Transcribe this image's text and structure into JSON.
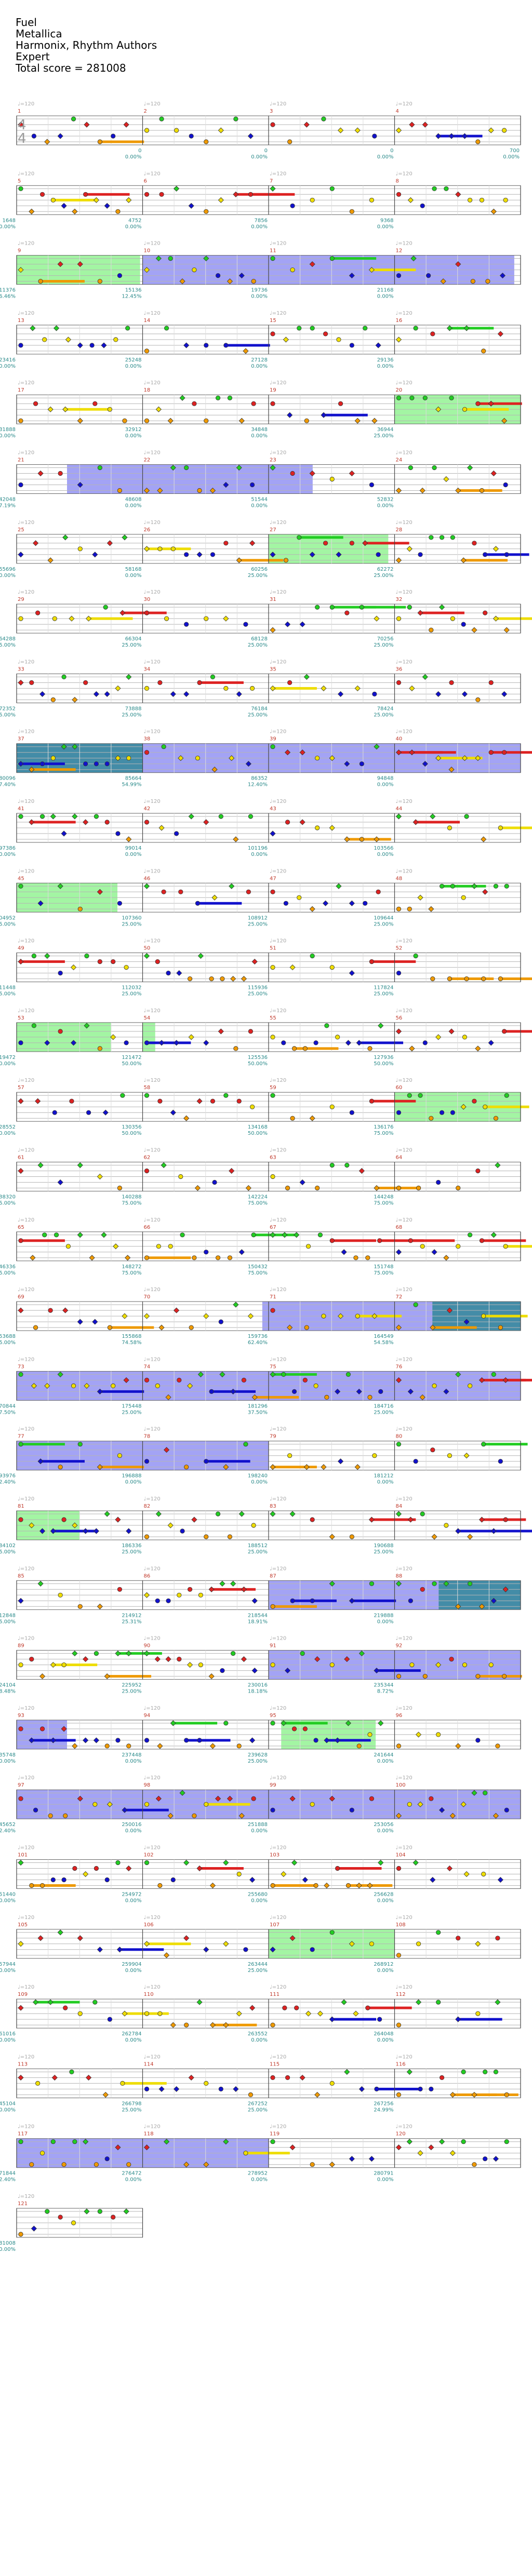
{
  "song": {
    "title": "Fuel",
    "artist": "Metallica",
    "charter": "Harmonix, Rhythm Authors",
    "difficulty": "Expert",
    "total_score": "Total score = 281008"
  },
  "time_signature": [
    "4",
    "4"
  ],
  "colors": {
    "green": "#22cc22",
    "red": "#dd2222",
    "yellow": "#eedd00",
    "blue": "#1111cc",
    "orange": "#ee9900",
    "star_power": "#66ee66",
    "solo": "#6666ee",
    "overlap": "#338899",
    "measure_num": "#c0392b",
    "score_text": "#2a8a8a"
  },
  "rows": [
    {
      "measures": [
        {
          "num": "1",
          "bpm": "♩=120",
          "score": "",
          "pct": ""
        },
        {
          "num": "2",
          "bpm": "♩=120",
          "score": "0",
          "pct": "0.00%"
        },
        {
          "num": "3",
          "bpm": "♩=120",
          "score": "0",
          "pct": "0.00%"
        },
        {
          "num": "4",
          "bpm": "♩=120",
          "score": "0",
          "pct": "0.00%"
        }
      ],
      "end_score": "700",
      "end_pct": "0.00%"
    },
    {
      "measures": [
        {
          "num": "5",
          "bpm": "♩=120",
          "score": "1648",
          "pct": "0.00%"
        },
        {
          "num": "6",
          "bpm": "♩=120",
          "score": "4752",
          "pct": "0.00%"
        },
        {
          "num": "7",
          "bpm": "♩=120",
          "score": "7856",
          "pct": "0.00%"
        },
        {
          "num": "8",
          "bpm": "♩=120",
          "score": "9368",
          "pct": "0.00%"
        }
      ]
    },
    {
      "measures": [
        {
          "num": "9",
          "bpm": "♩=120",
          "score": "11376",
          "pct": "16.46%"
        },
        {
          "num": "10",
          "bpm": "♩=120",
          "score": "15136",
          "pct": "12.45%"
        },
        {
          "num": "11",
          "bpm": "♩=120",
          "score": "19736",
          "pct": "0.00%"
        },
        {
          "num": "12",
          "bpm": "♩=120",
          "score": "21168",
          "pct": "0.00%"
        }
      ]
    },
    {
      "measures": [
        {
          "num": "13",
          "bpm": "♩=120",
          "score": "23416",
          "pct": "0.00%"
        },
        {
          "num": "14",
          "bpm": "♩=120",
          "score": "25248",
          "pct": "0.00%"
        },
        {
          "num": "15",
          "bpm": "♩=120",
          "score": "27128",
          "pct": "0.00%"
        },
        {
          "num": "16",
          "bpm": "♩=120",
          "score": "29136",
          "pct": "0.00%"
        }
      ]
    },
    {
      "measures": [
        {
          "num": "17",
          "bpm": "♩=120",
          "score": "31888",
          "pct": "0.00%"
        },
        {
          "num": "18",
          "bpm": "♩=120",
          "score": "32912",
          "pct": "0.00%"
        },
        {
          "num": "19",
          "bpm": "♩=120",
          "score": "34848",
          "pct": "0.00%"
        },
        {
          "num": "20",
          "bpm": "♩=120",
          "score": "36944",
          "pct": "25.00%"
        }
      ]
    },
    {
      "measures": [
        {
          "num": "21",
          "bpm": "♩=120",
          "score": "42048",
          "pct": "17.19%"
        },
        {
          "num": "22",
          "bpm": "♩=120",
          "score": "48608",
          "pct": "0.00%"
        },
        {
          "num": "23",
          "bpm": "♩=120",
          "score": "51544",
          "pct": "0.00%"
        },
        {
          "num": "24",
          "bpm": "♩=120",
          "score": "52832",
          "pct": "0.00%"
        }
      ]
    },
    {
      "measures": [
        {
          "num": "25",
          "bpm": "♩=120",
          "score": "55696",
          "pct": "0.00%"
        },
        {
          "num": "26",
          "bpm": "♩=120",
          "score": "58168",
          "pct": "0.00%"
        },
        {
          "num": "27",
          "bpm": "♩=120",
          "score": "60256",
          "pct": "25.00%"
        },
        {
          "num": "28",
          "bpm": "♩=120",
          "score": "62272",
          "pct": "25.00%"
        }
      ]
    },
    {
      "measures": [
        {
          "num": "29",
          "bpm": "♩=120",
          "score": "64288",
          "pct": "25.00%"
        },
        {
          "num": "30",
          "bpm": "♩=120",
          "score": "66304",
          "pct": "25.00%"
        },
        {
          "num": "31",
          "bpm": "♩=120",
          "score": "68128",
          "pct": "25.00%"
        },
        {
          "num": "32",
          "bpm": "♩=120",
          "score": "70256",
          "pct": "25.00%"
        }
      ]
    },
    {
      "measures": [
        {
          "num": "33",
          "bpm": "♩=120",
          "score": "72352",
          "pct": "25.00%"
        },
        {
          "num": "34",
          "bpm": "♩=120",
          "score": "73888",
          "pct": "25.00%"
        },
        {
          "num": "35",
          "bpm": "♩=120",
          "score": "76184",
          "pct": "25.00%"
        },
        {
          "num": "36",
          "bpm": "♩=120",
          "score": "78424",
          "pct": "25.00%"
        }
      ]
    },
    {
      "measures": [
        {
          "num": "37",
          "bpm": "♩=120",
          "score": "80096",
          "pct": "37.40%"
        },
        {
          "num": "38",
          "bpm": "♩=120",
          "score": "85664",
          "pct": "54.99%"
        },
        {
          "num": "39",
          "bpm": "♩=120",
          "score": "86352",
          "pct": "12.40%"
        },
        {
          "num": "40",
          "bpm": "♩=120",
          "score": "94848",
          "pct": "0.00%"
        }
      ]
    },
    {
      "measures": [
        {
          "num": "41",
          "bpm": "♩=120",
          "score": "97386",
          "pct": "0.00%"
        },
        {
          "num": "42",
          "bpm": "♩=120",
          "score": "99014",
          "pct": "0.00%"
        },
        {
          "num": "43",
          "bpm": "♩=120",
          "score": "101196",
          "pct": "0.00%"
        },
        {
          "num": "44",
          "bpm": "♩=120",
          "score": "103566",
          "pct": "0.00%"
        }
      ]
    },
    {
      "measures": [
        {
          "num": "45",
          "bpm": "♩=120",
          "score": "104952",
          "pct": "25.00%"
        },
        {
          "num": "46",
          "bpm": "♩=120",
          "score": "107360",
          "pct": "25.00%"
        },
        {
          "num": "47",
          "bpm": "♩=120",
          "score": "108912",
          "pct": "25.00%"
        },
        {
          "num": "48",
          "bpm": "♩=120",
          "score": "109644",
          "pct": "25.00%"
        }
      ]
    },
    {
      "measures": [
        {
          "num": "49",
          "bpm": "♩=120",
          "score": "111448",
          "pct": "25.00%"
        },
        {
          "num": "50",
          "bpm": "♩=120",
          "score": "112032",
          "pct": "25.00%"
        },
        {
          "num": "51",
          "bpm": "♩=120",
          "score": "115936",
          "pct": "25.00%"
        },
        {
          "num": "52",
          "bpm": "♩=120",
          "score": "117824",
          "pct": "25.00%"
        }
      ]
    },
    {
      "measures": [
        {
          "num": "53",
          "bpm": "♩=120",
          "score": "119472",
          "pct": "50.00%"
        },
        {
          "num": "54",
          "bpm": "♩=120",
          "score": "121472",
          "pct": "50.00%"
        },
        {
          "num": "55",
          "bpm": "♩=120",
          "score": "125536",
          "pct": "50.00%"
        },
        {
          "num": "56",
          "bpm": "♩=120",
          "score": "127936",
          "pct": "50.00%"
        }
      ]
    },
    {
      "measures": [
        {
          "num": "57",
          "bpm": "♩=120",
          "score": "128552",
          "pct": "50.00%"
        },
        {
          "num": "58",
          "bpm": "♩=120",
          "score": "130356",
          "pct": "50.00%"
        },
        {
          "num": "59",
          "bpm": "♩=120",
          "score": "134168",
          "pct": "50.00%"
        },
        {
          "num": "60",
          "bpm": "♩=120",
          "score": "136176",
          "pct": "75.00%"
        }
      ]
    },
    {
      "measures": [
        {
          "num": "61",
          "bpm": "♩=120",
          "score": "138320",
          "pct": "75.00%"
        },
        {
          "num": "62",
          "bpm": "♩=120",
          "score": "140288",
          "pct": "75.00%"
        },
        {
          "num": "63",
          "bpm": "♩=120",
          "score": "142224",
          "pct": "75.00%"
        },
        {
          "num": "64",
          "bpm": "♩=120",
          "score": "144248",
          "pct": "75.00%"
        }
      ]
    },
    {
      "measures": [
        {
          "num": "65",
          "bpm": "♩=120",
          "score": "146336",
          "pct": "75.00%"
        },
        {
          "num": "66",
          "bpm": "♩=120",
          "score": "148272",
          "pct": "75.00%"
        },
        {
          "num": "67",
          "bpm": "♩=120",
          "score": "150432",
          "pct": "75.00%"
        },
        {
          "num": "68",
          "bpm": "♩=120",
          "score": "151748",
          "pct": "75.00%"
        }
      ]
    },
    {
      "measures": [
        {
          "num": "69",
          "bpm": "♩=120",
          "score": "153688",
          "pct": "75.00%"
        },
        {
          "num": "70",
          "bpm": "♩=120",
          "score": "155868",
          "pct": "74.58%"
        },
        {
          "num": "71",
          "bpm": "♩=120",
          "score": "159736",
          "pct": "62.40%"
        },
        {
          "num": "72",
          "bpm": "♩=120",
          "score": "164549",
          "pct": "54.58%"
        }
      ]
    },
    {
      "measures": [
        {
          "num": "73",
          "bpm": "♩=120",
          "score": "170844",
          "pct": "37.50%"
        },
        {
          "num": "74",
          "bpm": "♩=120",
          "score": "175448",
          "pct": "25.00%"
        },
        {
          "num": "75",
          "bpm": "♩=120",
          "score": "181296",
          "pct": "37.50%"
        },
        {
          "num": "76",
          "bpm": "♩=120",
          "score": "184716",
          "pct": "25.00%"
        }
      ]
    },
    {
      "measures": [
        {
          "num": "77",
          "bpm": "♩=120",
          "score": "193976",
          "pct": "12.40%"
        },
        {
          "num": "78",
          "bpm": "♩=120",
          "score": "196888",
          "pct": "0.00%"
        },
        {
          "num": "79",
          "bpm": "♩=120",
          "score": "198240",
          "pct": "0.00%"
        },
        {
          "num": "80",
          "bpm": "♩=120",
          "score": "181212",
          "pct": "0.00%"
        }
      ]
    },
    {
      "measures": [
        {
          "num": "81",
          "bpm": "♩=120",
          "score": "184102",
          "pct": "25.00%"
        },
        {
          "num": "82",
          "bpm": "♩=120",
          "score": "186336",
          "pct": "25.00%"
        },
        {
          "num": "83",
          "bpm": "♩=120",
          "score": "188512",
          "pct": "25.00%"
        },
        {
          "num": "84",
          "bpm": "♩=120",
          "score": "190688",
          "pct": "25.00%"
        }
      ]
    },
    {
      "measures": [
        {
          "num": "85",
          "bpm": "♩=120",
          "score": "212848",
          "pct": "25.00%"
        },
        {
          "num": "86",
          "bpm": "♩=120",
          "score": "214912",
          "pct": "25.31%"
        },
        {
          "num": "87",
          "bpm": "♩=120",
          "score": "218544",
          "pct": "18.91%"
        },
        {
          "num": "88",
          "bpm": "♩=120",
          "score": "219888",
          "pct": "0.00%"
        }
      ]
    },
    {
      "measures": [
        {
          "num": "89",
          "bpm": "♩=120",
          "score": "224104",
          "pct": "18.48%"
        },
        {
          "num": "90",
          "bpm": "♩=120",
          "score": "225952",
          "pct": "25.00%"
        },
        {
          "num": "91",
          "bpm": "♩=120",
          "score": "230016",
          "pct": "18.18%"
        },
        {
          "num": "92",
          "bpm": "♩=120",
          "score": "235344",
          "pct": "8.72%"
        }
      ]
    },
    {
      "measures": [
        {
          "num": "93",
          "bpm": "♩=120",
          "score": "235748",
          "pct": "0.00%"
        },
        {
          "num": "94",
          "bpm": "♩=120",
          "score": "237448",
          "pct": "0.00%"
        },
        {
          "num": "95",
          "bpm": "♩=120",
          "score": "239628",
          "pct": "25.00%"
        },
        {
          "num": "96",
          "bpm": "♩=120",
          "score": "241644",
          "pct": "0.00%"
        }
      ]
    },
    {
      "measures": [
        {
          "num": "97",
          "bpm": "♩=120",
          "score": "245652",
          "pct": "12.40%"
        },
        {
          "num": "98",
          "bpm": "♩=120",
          "score": "250016",
          "pct": "0.00%"
        },
        {
          "num": "99",
          "bpm": "♩=120",
          "score": "251888",
          "pct": "0.00%"
        },
        {
          "num": "100",
          "bpm": "♩=120",
          "score": "253056",
          "pct": "0.00%"
        }
      ]
    },
    {
      "measures": [
        {
          "num": "101",
          "bpm": "♩=120",
          "score": "251440",
          "pct": "0.00%"
        },
        {
          "num": "102",
          "bpm": "♩=120",
          "score": "254972",
          "pct": "0.00%"
        },
        {
          "num": "103",
          "bpm": "♩=120",
          "score": "255680",
          "pct": "0.00%"
        },
        {
          "num": "104",
          "bpm": "♩=120",
          "score": "256628",
          "pct": "0.00%"
        }
      ]
    },
    {
      "measures": [
        {
          "num": "105",
          "bpm": "♩=120",
          "score": "257944",
          "pct": "0.00%"
        },
        {
          "num": "106",
          "bpm": "♩=120",
          "score": "259904",
          "pct": "0.00%"
        },
        {
          "num": "107",
          "bpm": "♩=120",
          "score": "263444",
          "pct": "25.00%"
        },
        {
          "num": "108",
          "bpm": "♩=120",
          "score": "268912",
          "pct": "0.00%"
        }
      ]
    },
    {
      "measures": [
        {
          "num": "109",
          "bpm": "♩=120",
          "score": "261016",
          "pct": "0.00%"
        },
        {
          "num": "110",
          "bpm": "♩=120",
          "score": "262784",
          "pct": "0.00%"
        },
        {
          "num": "111",
          "bpm": "♩=120",
          "score": "263552",
          "pct": "0.00%"
        },
        {
          "num": "112",
          "bpm": "♩=120",
          "score": "264048",
          "pct": "0.00%"
        }
      ]
    },
    {
      "measures": [
        {
          "num": "113",
          "bpm": "♩=120",
          "score": "245104",
          "pct": "0.00%"
        },
        {
          "num": "114",
          "bpm": "♩=120",
          "score": "266798",
          "pct": "25.00%"
        },
        {
          "num": "115",
          "bpm": "♩=120",
          "score": "267252",
          "pct": "25.00%"
        },
        {
          "num": "116",
          "bpm": "♩=120",
          "score": "267256",
          "pct": "24.99%"
        }
      ]
    },
    {
      "measures": [
        {
          "num": "117",
          "bpm": "♩=120",
          "score": "271844",
          "pct": "12.40%"
        },
        {
          "num": "118",
          "bpm": "♩=120",
          "score": "276472",
          "pct": "0.00%"
        },
        {
          "num": "119",
          "bpm": "♩=120",
          "score": "278952",
          "pct": "0.00%"
        },
        {
          "num": "120",
          "bpm": "♩=120",
          "score": "280791",
          "pct": "0.00%"
        }
      ]
    },
    {
      "measures": [
        {
          "num": "121",
          "bpm": "♩=120",
          "score": "281008",
          "pct": "0.00%"
        }
      ]
    }
  ]
}
